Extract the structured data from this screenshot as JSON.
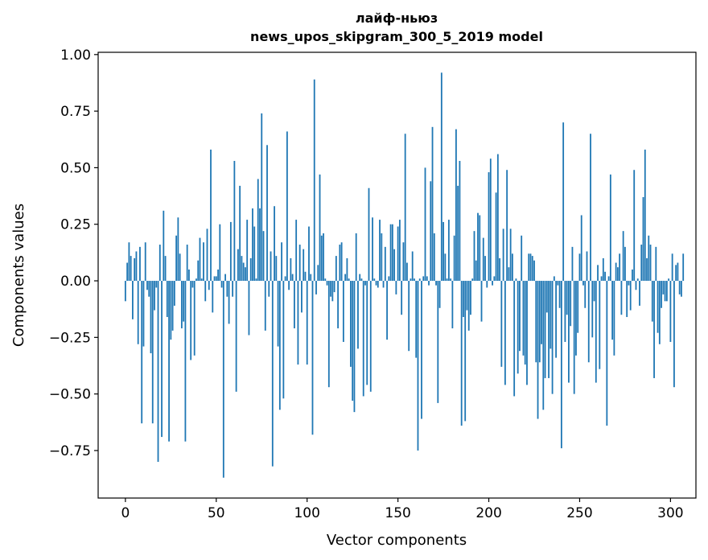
{
  "chart_data": {
    "type": "bar",
    "title": "лайф-ньюз",
    "subtitle": "news_upos_skipgram_300_5_2019 model",
    "xlabel": "Vector components",
    "ylabel": "Components values",
    "xlim": [
      -15,
      314
    ],
    "ylim": [
      -0.96,
      1.01
    ],
    "xticks": [
      0,
      50,
      100,
      150,
      200,
      250,
      300
    ],
    "yticks": [
      -0.75,
      -0.5,
      -0.25,
      0.0,
      0.25,
      0.5,
      0.75,
      1.0
    ],
    "xtick_labels": [
      "0",
      "50",
      "100",
      "150",
      "200",
      "250",
      "300"
    ],
    "ytick_labels": [
      "−0.75",
      "−0.50",
      "−0.25",
      "0.00",
      "0.25",
      "0.50",
      "0.75",
      "1.00"
    ],
    "bar_color": "#1f77b4",
    "grid": false,
    "x_start": 0,
    "values": [
      -0.09,
      0.08,
      0.17,
      0.11,
      -0.17,
      0.1,
      0.13,
      -0.28,
      0.15,
      -0.63,
      -0.29,
      0.17,
      -0.04,
      -0.07,
      -0.32,
      -0.63,
      -0.13,
      -0.03,
      -0.8,
      0.16,
      -0.69,
      0.31,
      0.11,
      -0.16,
      -0.71,
      -0.26,
      -0.22,
      -0.11,
      0.2,
      0.28,
      0.12,
      -0.21,
      -0.18,
      -0.71,
      0.16,
      0.05,
      -0.35,
      -0.03,
      -0.33,
      0.01,
      0.09,
      0.19,
      0.01,
      0.17,
      -0.09,
      0.23,
      -0.04,
      0.58,
      -0.14,
      0.02,
      0.02,
      0.05,
      0.25,
      -0.03,
      -0.87,
      0.03,
      -0.07,
      -0.19,
      0.26,
      -0.07,
      0.53,
      -0.49,
      0.14,
      0.42,
      0.11,
      0.08,
      0.06,
      0.27,
      -0.24,
      0.1,
      0.32,
      0.24,
      0.01,
      0.45,
      0.32,
      0.74,
      0.22,
      -0.22,
      0.6,
      -0.07,
      0.13,
      -0.82,
      0.33,
      0.11,
      -0.29,
      -0.57,
      0.17,
      -0.52,
      0.02,
      0.66,
      -0.04,
      0.1,
      0.03,
      -0.21,
      0.27,
      -0.37,
      0.16,
      -0.14,
      0.14,
      0.04,
      -0.37,
      0.24,
      0.03,
      -0.68,
      0.89,
      -0.06,
      0.07,
      0.47,
      0.2,
      0.21,
      0.01,
      -0.02,
      -0.47,
      -0.07,
      -0.09,
      -0.05,
      0.11,
      -0.21,
      0.16,
      0.17,
      -0.27,
      0.03,
      0.1,
      0.01,
      -0.38,
      -0.53,
      -0.58,
      0.21,
      -0.3,
      0.03,
      0.01,
      -0.51,
      -0.02,
      -0.46,
      0.41,
      -0.49,
      0.28,
      0.01,
      -0.02,
      -0.03,
      0.27,
      0.21,
      -0.03,
      0.15,
      -0.26,
      0.02,
      0.25,
      0.25,
      0.14,
      -0.06,
      0.24,
      0.27,
      -0.15,
      0.17,
      0.65,
      0.08,
      -0.31,
      0.01,
      0.13,
      0.01,
      -0.34,
      -0.75,
      0.01,
      -0.61,
      0.02,
      0.5,
      0.02,
      -0.02,
      0.44,
      0.68,
      0.21,
      -0.02,
      -0.54,
      -0.12,
      0.92,
      0.26,
      0.12,
      0.01,
      0.27,
      0.01,
      -0.21,
      0.2,
      0.67,
      0.42,
      0.53,
      -0.64,
      -0.16,
      -0.62,
      -0.13,
      -0.22,
      -0.15,
      0.01,
      0.22,
      0.09,
      0.3,
      0.29,
      -0.18,
      0.19,
      0.11,
      -0.03,
      0.48,
      0.54,
      -0.02,
      0.02,
      0.39,
      0.56,
      0.1,
      -0.38,
      0.23,
      -0.46,
      0.49,
      0.06,
      0.23,
      0.12,
      -0.51,
      0.01,
      -0.41,
      -0.31,
      0.2,
      -0.33,
      -0.37,
      -0.46,
      0.12,
      0.12,
      0.11,
      0.09,
      -0.36,
      -0.61,
      -0.36,
      -0.28,
      -0.57,
      -0.43,
      -0.14,
      -0.43,
      -0.3,
      -0.5,
      0.02,
      -0.34,
      -0.02,
      -0.12,
      -0.74,
      0.7,
      -0.27,
      -0.15,
      -0.45,
      -0.2,
      0.15,
      -0.5,
      -0.33,
      -0.23,
      0.12,
      0.29,
      -0.02,
      -0.12,
      0.13,
      -0.36,
      0.65,
      -0.25,
      -0.09,
      -0.45,
      0.07,
      -0.39,
      0.02,
      0.1,
      0.04,
      -0.64,
      0.02,
      0.47,
      -0.26,
      -0.33,
      0.08,
      0.06,
      0.12,
      -0.15,
      0.22,
      0.15,
      -0.16,
      -0.02,
      -0.13,
      0.05,
      0.49,
      -0.04,
      0.01,
      -0.11,
      0.16,
      0.37,
      0.58,
      0.1,
      0.2,
      0.16,
      -0.18,
      -0.43,
      0.15,
      -0.23,
      -0.28,
      -0.12,
      -0.06,
      -0.09,
      -0.09,
      0.01,
      -0.27,
      0.12,
      -0.47,
      0.07,
      0.08,
      -0.06,
      -0.07,
      0.12
    ]
  }
}
